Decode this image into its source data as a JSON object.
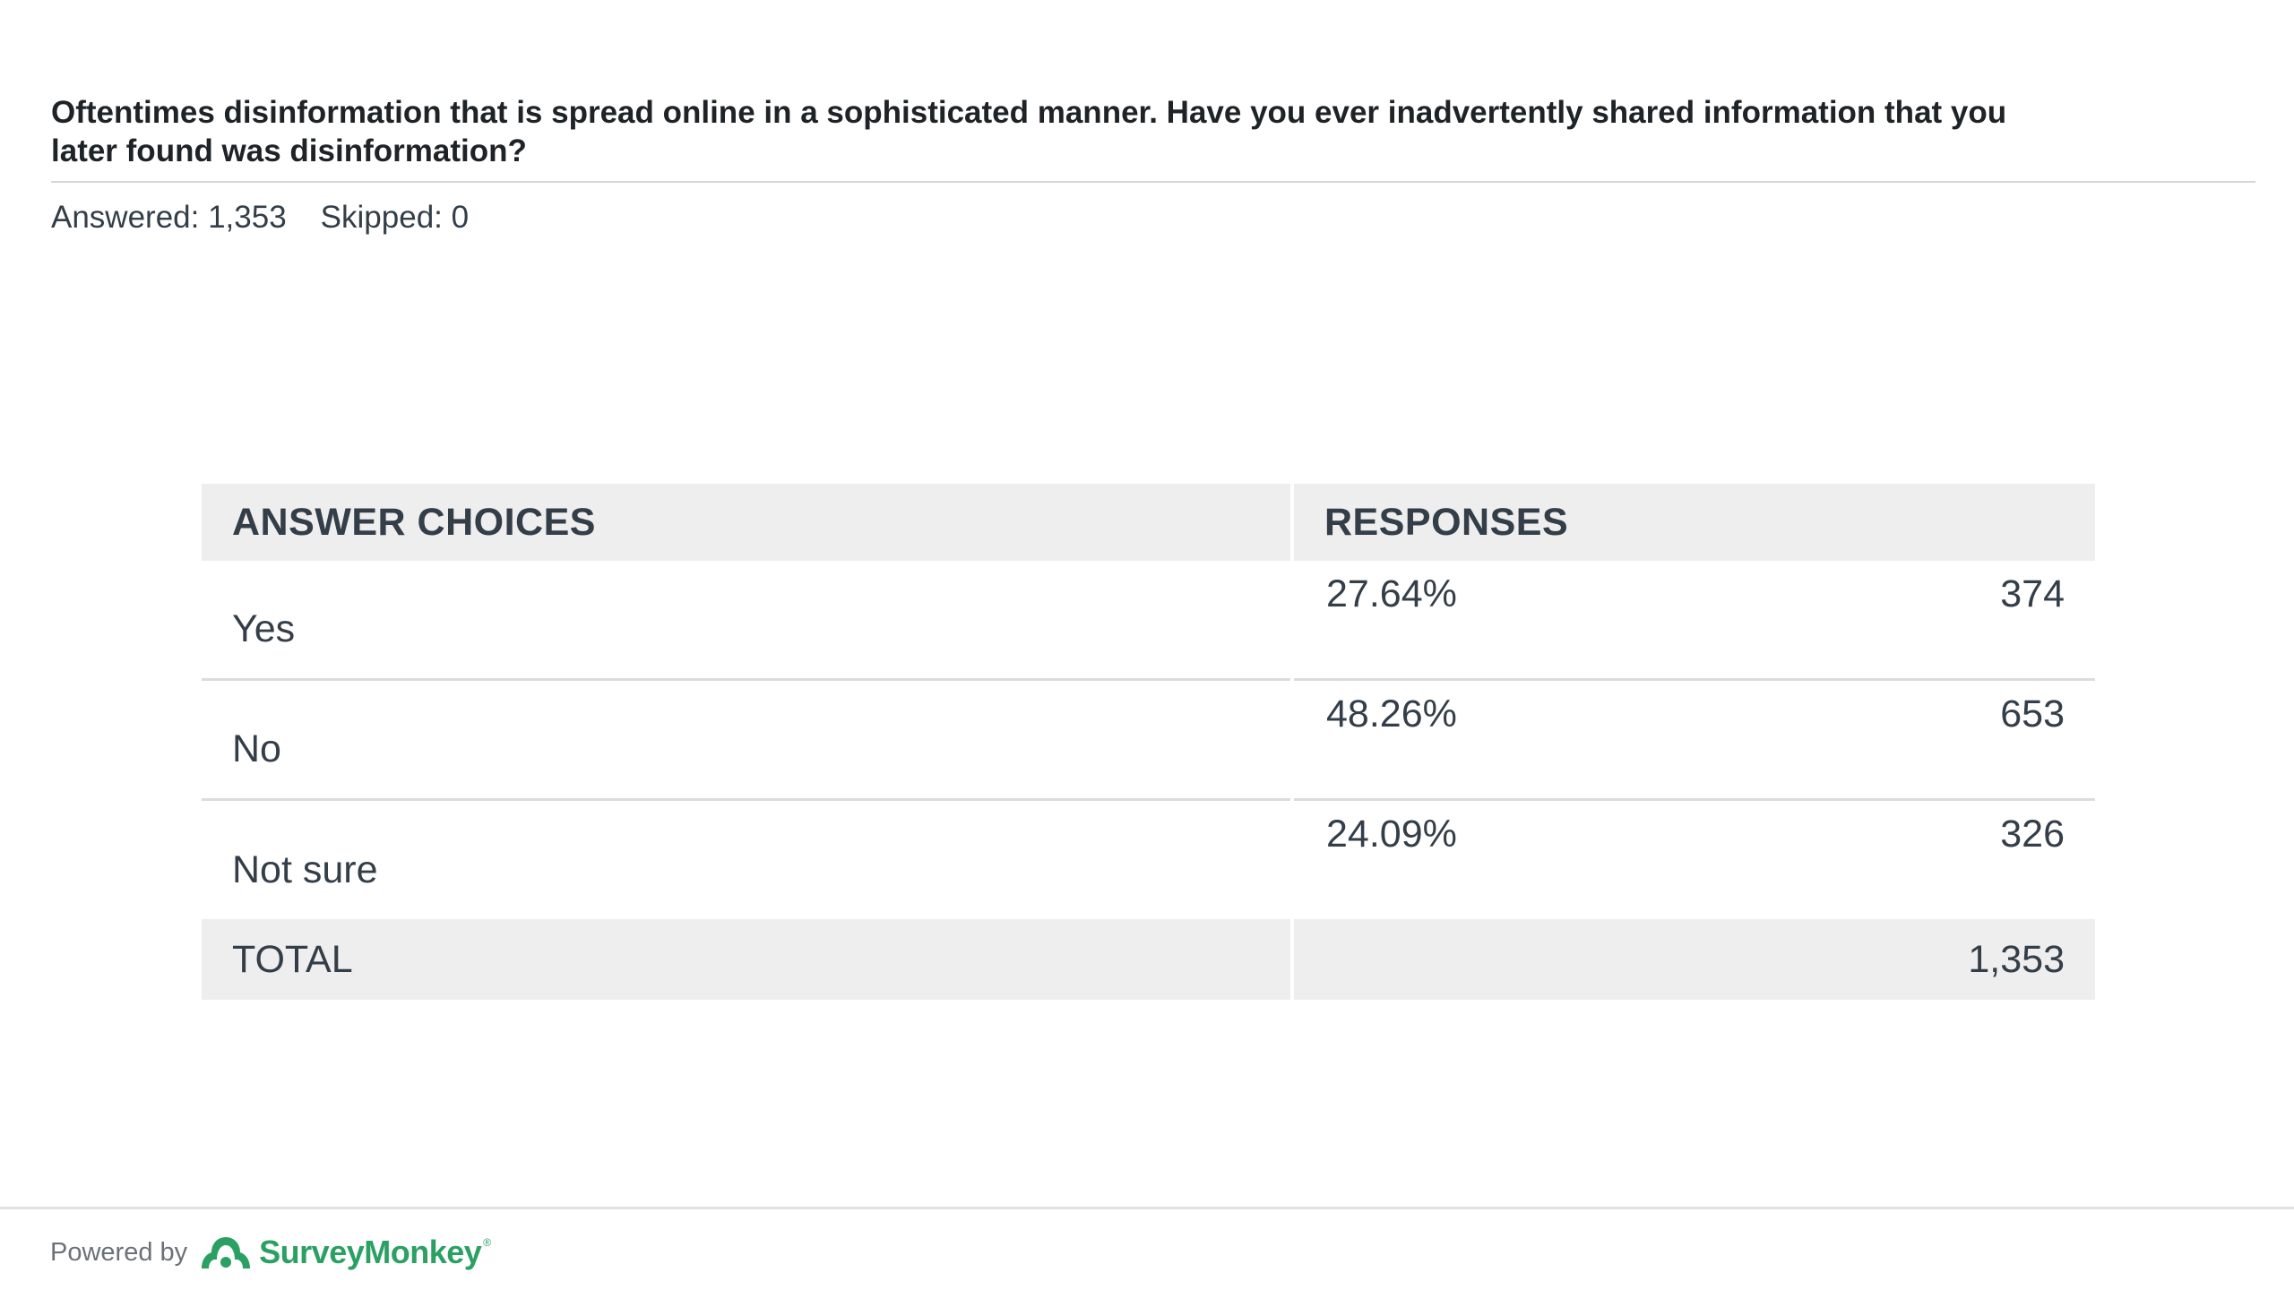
{
  "question": {
    "text": "Oftentimes disinformation that is spread online in a sophisticated manner. Have you ever inadvertently shared information that you later found was disinformation?"
  },
  "meta": {
    "answered": "Answered: 1,353",
    "skipped": "Skipped: 0"
  },
  "table": {
    "headers": {
      "choices": "ANSWER CHOICES",
      "responses": "RESPONSES"
    },
    "rows": [
      {
        "choice": "Yes",
        "percent": "27.64%",
        "count": "374"
      },
      {
        "choice": "No",
        "percent": "48.26%",
        "count": "653"
      },
      {
        "choice": "Not sure",
        "percent": "24.09%",
        "count": "326"
      }
    ],
    "total": {
      "label": "TOTAL",
      "count": "1,353"
    }
  },
  "footer": {
    "powered_by": "Powered by",
    "brand": "SurveyMonkey",
    "brand_mark": "®",
    "logo_icon": "surveymonkey-logo-icon",
    "brand_color": "#2aa163"
  }
}
